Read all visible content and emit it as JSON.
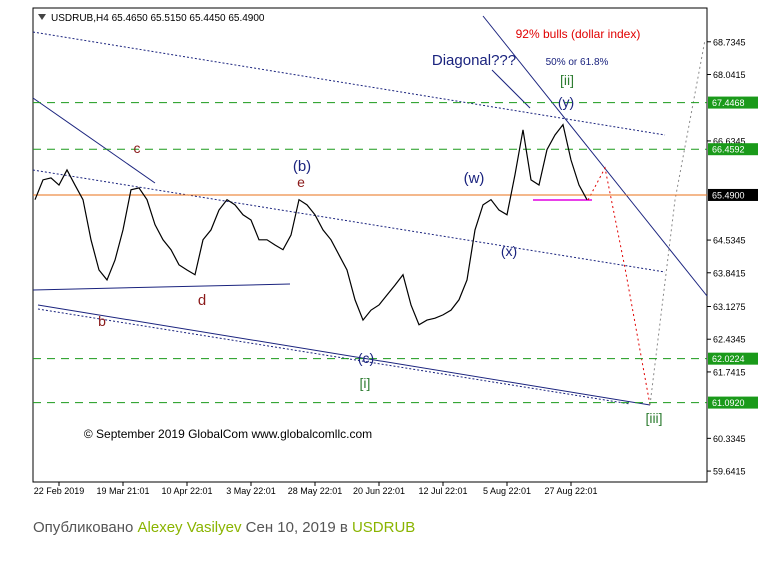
{
  "chart_data": {
    "type": "line",
    "header": "USDRUB,H4  65.4650 65.5150 65.4450 65.4900",
    "categories": [
      null,
      null,
      null,
      "22 Feb 2019",
      null,
      null,
      null,
      null,
      null,
      null,
      null,
      "19 Mar 21:01",
      null,
      null,
      null,
      null,
      null,
      null,
      null,
      "10 Apr 22:01",
      null,
      null,
      null,
      null,
      null,
      null,
      null,
      "3 May 22:01",
      null,
      null,
      null,
      null,
      null,
      null,
      null,
      "28 May 22:01",
      null,
      null,
      null,
      null,
      null,
      null,
      null,
      "20 Jun 22:01",
      null,
      null,
      null,
      null,
      null,
      null,
      null,
      "12 Jul 22:01",
      null,
      null,
      null,
      null,
      null,
      null,
      null,
      "5 Aug 22:01",
      null,
      null,
      null,
      null,
      null,
      null,
      null,
      "27 Aug 22:01",
      null,
      null
    ],
    "values": [
      65.39,
      65.81,
      65.85,
      65.7,
      66.02,
      65.7,
      65.39,
      64.54,
      63.9,
      63.69,
      64.11,
      64.75,
      65.6,
      65.64,
      65.39,
      64.86,
      64.54,
      64.33,
      64.01,
      63.9,
      63.8,
      64.54,
      64.75,
      65.17,
      65.39,
      65.28,
      65.07,
      64.96,
      64.54,
      64.54,
      64.43,
      64.33,
      64.64,
      65.39,
      65.28,
      65.07,
      64.75,
      64.54,
      64.22,
      63.9,
      63.27,
      62.84,
      63.05,
      63.16,
      63.37,
      63.58,
      63.8,
      63.16,
      62.74,
      62.84,
      62.88,
      62.95,
      63.05,
      63.27,
      63.69,
      64.75,
      65.28,
      65.39,
      65.17,
      65.07,
      65.92,
      66.87,
      65.81,
      65.7,
      66.45,
      66.76,
      66.98,
      66.23,
      65.7,
      65.39
    ],
    "color": "#000000",
    "ylim": [
      59.41,
      69.45
    ],
    "yticks": [
      68.7345,
      68.0415,
      66.6345,
      64.5345,
      63.8415,
      63.1275,
      62.4345,
      61.7415,
      60.3345,
      59.6415
    ],
    "levels": [
      {
        "value": 67.4468,
        "label": "67.4468",
        "color": "#1a9a1a",
        "box": "#1a9a1a"
      },
      {
        "value": 66.4592,
        "label": "66.4592",
        "color": "#1a9a1a",
        "box": "#1a9a1a"
      },
      {
        "value": 65.49,
        "label": "65.4900",
        "color": "#e8701a",
        "box": "#000000"
      },
      {
        "value": 62.0224,
        "label": "62.0224",
        "color": "#1a9a1a",
        "box": "#1a9a1a"
      },
      {
        "value": 61.092,
        "label": "61.0920",
        "color": "#1a9a1a",
        "box": "#1a9a1a"
      }
    ],
    "annotations": [
      {
        "text": "c",
        "color": "#8b1a1a"
      },
      {
        "text": "(b)",
        "color": "#1a237e"
      },
      {
        "text": "e",
        "color": "#8b1a1a"
      },
      {
        "text": "d",
        "color": "#8b1a1a"
      },
      {
        "text": "b",
        "color": "#8b1a1a"
      },
      {
        "text": "(c)",
        "color": "#1a237e"
      },
      {
        "text": "[i]",
        "color": "#2e7d32"
      },
      {
        "text": "(w)",
        "color": "#1a237e"
      },
      {
        "text": "(x)",
        "color": "#1a237e"
      },
      {
        "text": "(y)",
        "color": "#1a237e"
      },
      {
        "text": "[ii]",
        "color": "#2e7d32"
      },
      {
        "text": "[iii]",
        "color": "#2e7d32"
      },
      {
        "text": "Diagonal???",
        "color": "#1a237e"
      },
      {
        "text": "50% or 61.8%",
        "color": "#1a237e"
      },
      {
        "text": "92% bulls  (dollar index)",
        "color": "#e00000"
      },
      {
        "text": "© September 2019 GlobalCom www.globalcomllc.com",
        "color": "#000000"
      }
    ]
  },
  "footer": {
    "published": "Опубликовано",
    "author": "Alexey Vasilyev",
    "date": "Сен 10, 2019",
    "preposition": "в",
    "symbol": "USDRUB"
  }
}
